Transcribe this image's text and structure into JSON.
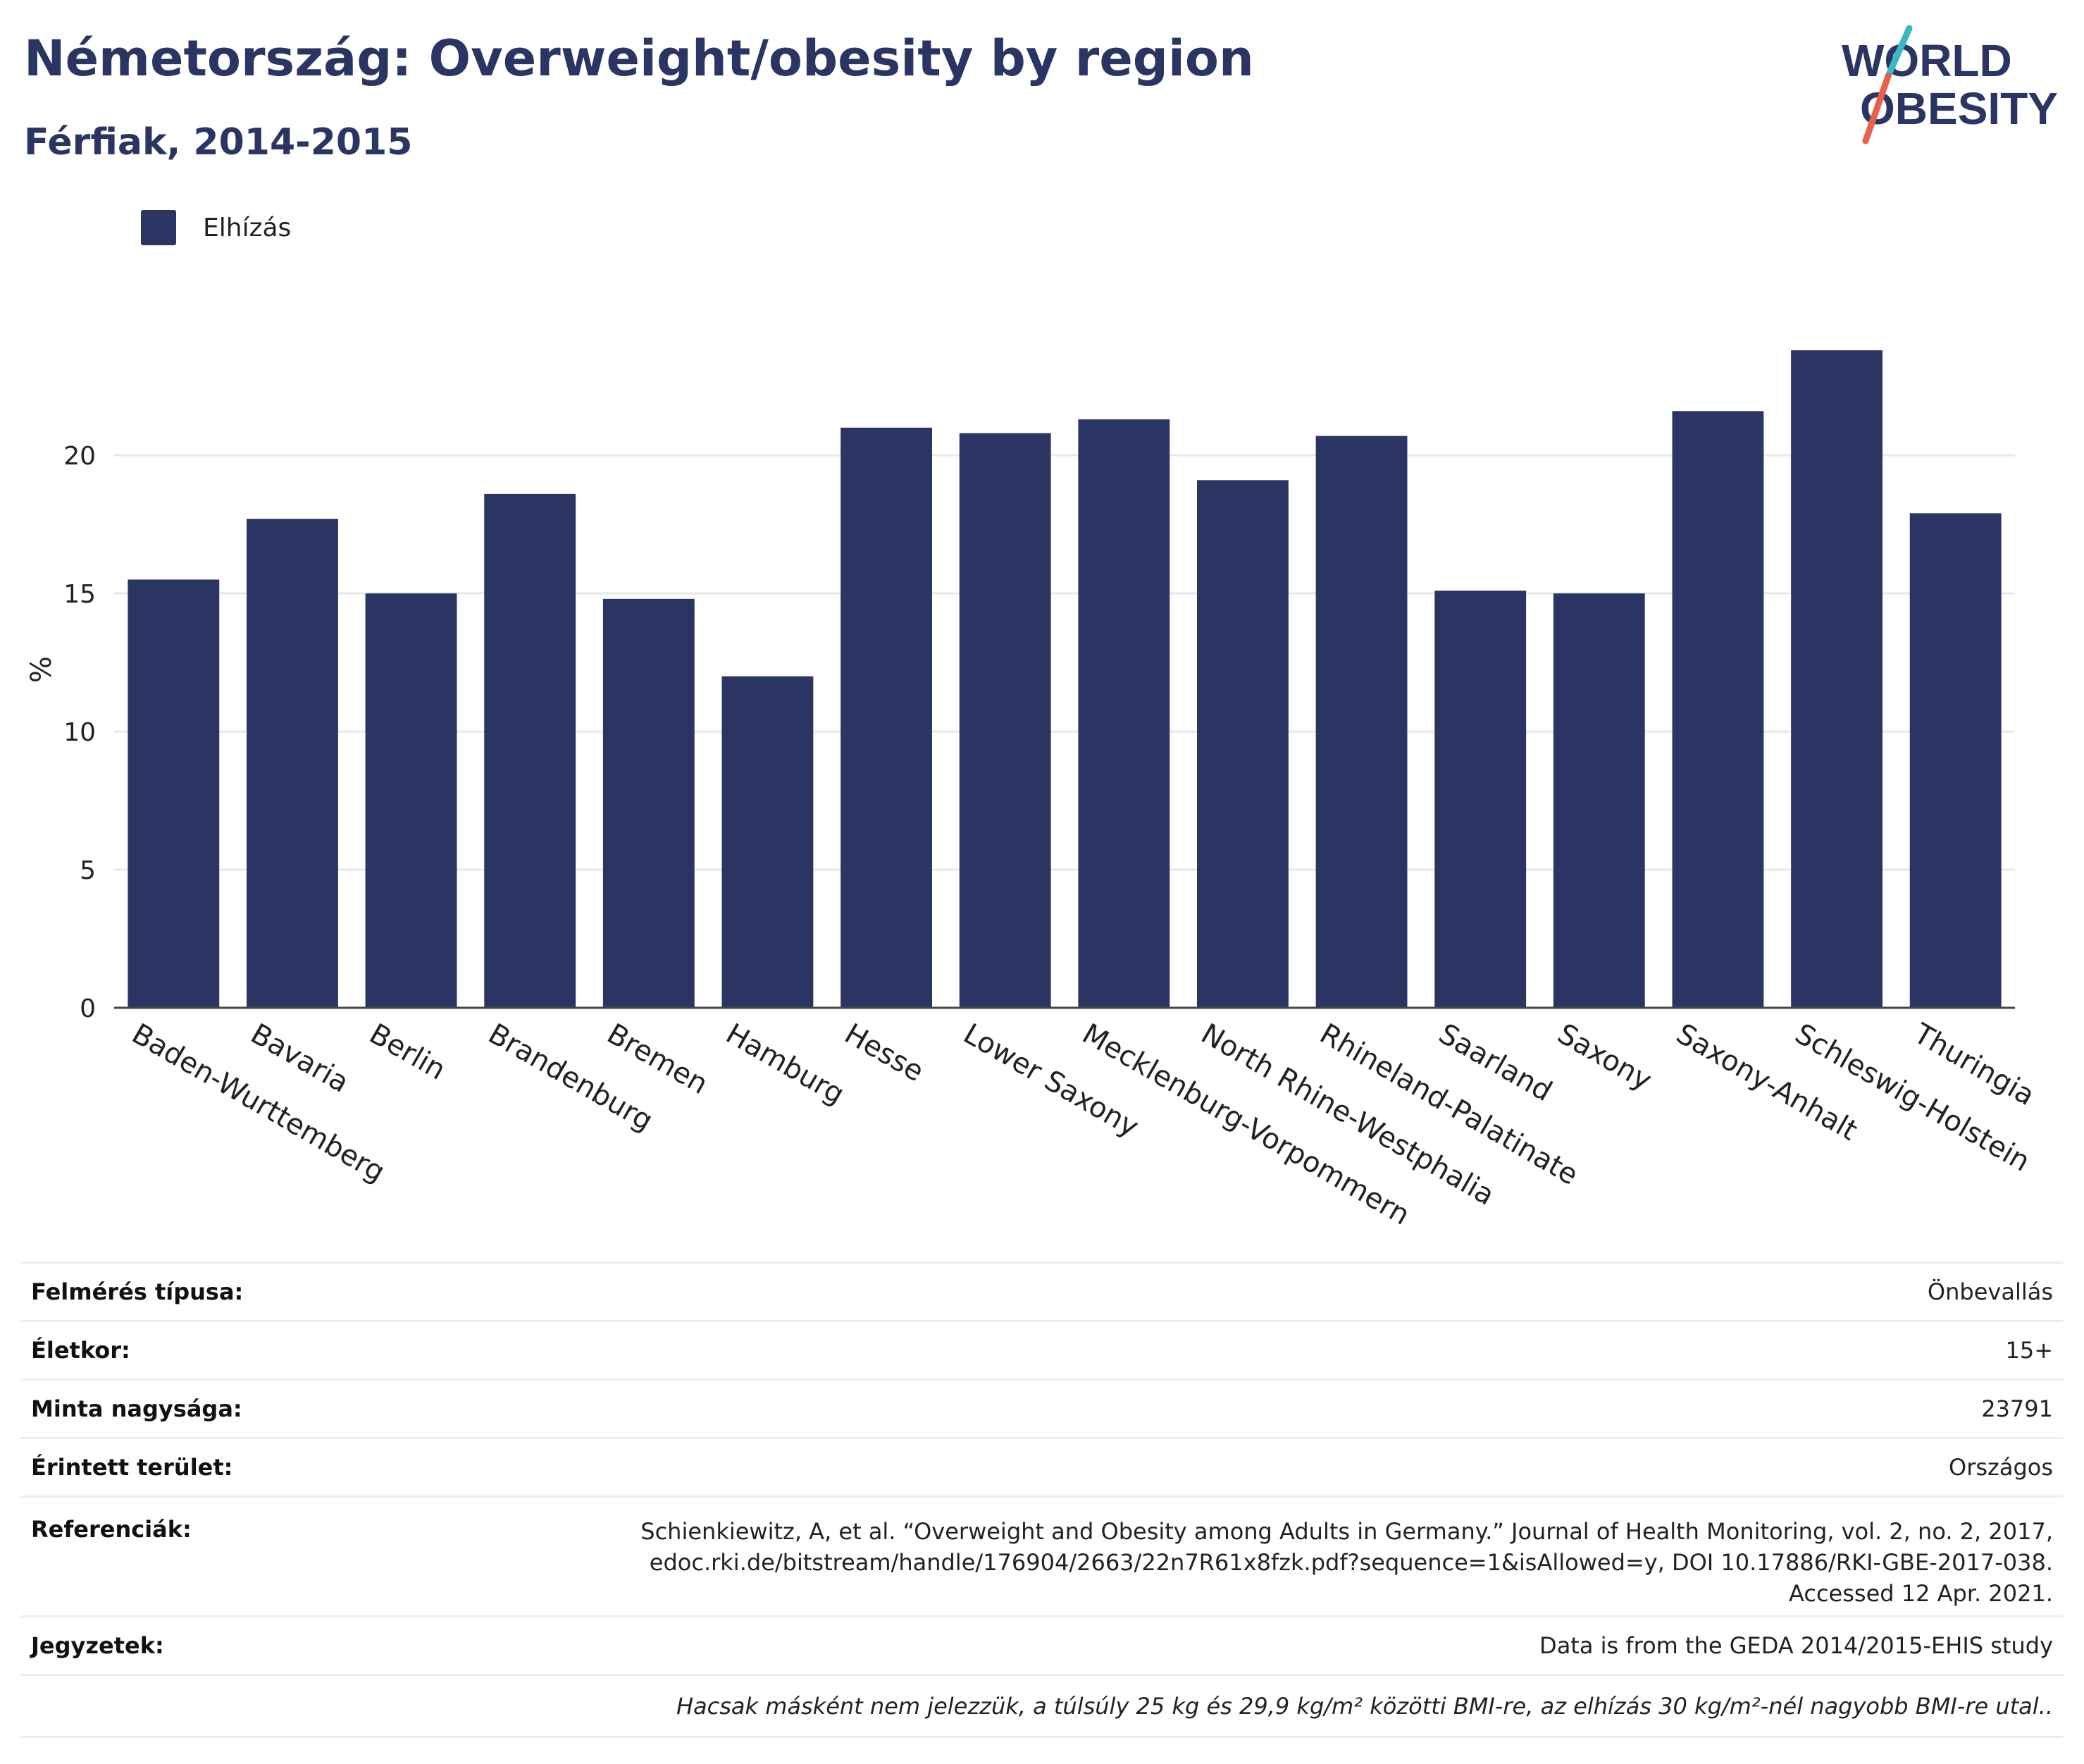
{
  "header": {
    "title": "Németország: Overweight/obesity by region",
    "subtitle": "Férfiak, 2014-2015"
  },
  "logo": {
    "line1": "WORLD",
    "line2": "OBESITY",
    "slash_color_top": "#3bb8c3",
    "slash_color_bottom": "#e8604c"
  },
  "legend": {
    "label": "Elhízás"
  },
  "colors": {
    "bar": "#2a3563",
    "grid": "#e8e8e8",
    "axis": "#444444",
    "text": "#2a3563"
  },
  "chart_data": {
    "type": "bar",
    "title": "Németország: Overweight/obesity by region",
    "subtitle": "Férfiak, 2014-2015",
    "xlabel": "",
    "ylabel": "%",
    "ylim": [
      0,
      25
    ],
    "yticks": [
      0,
      5,
      10,
      15,
      20
    ],
    "grid": true,
    "legend_position": "top-left",
    "categories": [
      "Baden-Wurttemberg",
      "Bavaria",
      "Berlin",
      "Brandenburg",
      "Bremen",
      "Hamburg",
      "Hesse",
      "Lower Saxony",
      "Mecklenburg-Vorpommern",
      "North Rhine-Westphalia",
      "Rhineland-Palatinate",
      "Saarland",
      "Saxony",
      "Saxony-Anhalt",
      "Schleswig-Holstein",
      "Thuringia"
    ],
    "series": [
      {
        "name": "Elhízás",
        "values": [
          15.5,
          17.7,
          15.0,
          18.6,
          14.8,
          12.0,
          21.0,
          20.8,
          21.3,
          19.1,
          20.7,
          15.1,
          15.0,
          21.6,
          23.8,
          17.9
        ]
      }
    ]
  },
  "info": {
    "survey_type_label": "Felmérés típusa:",
    "survey_type_value": "Önbevallás",
    "age_label": "Életkor:",
    "age_value": "15+",
    "sample_label": "Minta nagysága:",
    "sample_value": "23791",
    "area_label": "Érintett terület:",
    "area_value": "Országos",
    "references_label": "Referenciák:",
    "references_line1": "Schienkiewitz, A, et al. “Overweight and Obesity among Adults in Germany.” Journal of Health Monitoring, vol. 2, no. 2, 2017,",
    "references_line2": "edoc.rki.de/bitstream/handle/176904/2663/22n7R61x8fzk.pdf?sequence=1&isAllowed=y, DOI 10.17886/RKI-GBE-2017-038.",
    "references_line3": "Accessed 12 Apr. 2021.",
    "notes_label": "Jegyzetek:",
    "notes_value": "Data is from the GEDA 2014/2015-EHIS study",
    "footnote": "Hacsak másként nem jelezzük, a túlsúly 25 kg és 29,9 kg/m² közötti BMI-re, az elhízás 30 kg/m²-nél nagyobb BMI-re utal.."
  }
}
